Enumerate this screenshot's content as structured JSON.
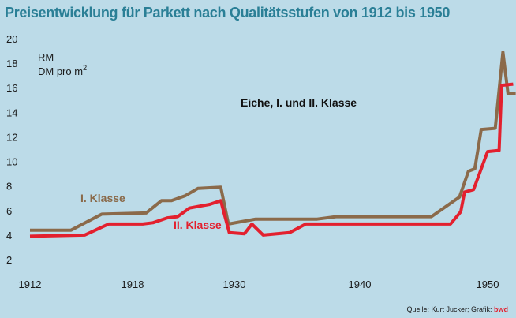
{
  "title": "Preisentwicklung für Parkett nach Qualitätsstufen von 1912 bis 1950",
  "source": "Quelle: Kurt Jucker; Grafik:",
  "source_brand": "bwd",
  "colors": {
    "background": "#bcdbe8",
    "title": "#2a7f96",
    "class1": "#8b6a4a",
    "class2": "#e3202e"
  },
  "chart_data": {
    "type": "line",
    "title": "Preisentwicklung für Parkett nach Qualitätsstufen von 1912 bis 1950",
    "unit_label": "RM",
    "unit_label2": "DM pro m",
    "unit_sup": "2",
    "annotation": "Eiche, I. und II. Klasse",
    "x_ticks": [
      1912,
      1918,
      1930,
      1940,
      1950
    ],
    "y_ticks": [
      2,
      4,
      6,
      8,
      10,
      12,
      14,
      16,
      18,
      20
    ],
    "ylim": [
      2,
      20
    ],
    "grid": false,
    "series": [
      {
        "name": "I. Klasse",
        "color": "#8b6a4a",
        "points": [
          [
            1912.0,
            4.4
          ],
          [
            1914.4,
            4.4
          ],
          [
            1916.2,
            5.7
          ],
          [
            1919.6,
            5.8
          ],
          [
            1921.4,
            6.8
          ],
          [
            1922.6,
            6.8
          ],
          [
            1924.2,
            7.2
          ],
          [
            1925.7,
            7.8
          ],
          [
            1928.4,
            7.9
          ],
          [
            1929.3,
            4.9
          ],
          [
            1931.7,
            5.3
          ],
          [
            1936.6,
            5.3
          ],
          [
            1938.1,
            5.5
          ],
          [
            1945.6,
            5.5
          ],
          [
            1947.8,
            7.1
          ],
          [
            1948.5,
            9.2
          ],
          [
            1949.0,
            9.4
          ],
          [
            1949.5,
            12.6
          ],
          [
            1950.6,
            12.7
          ],
          [
            1951.2,
            18.9
          ],
          [
            1951.6,
            15.5
          ],
          [
            1952.2,
            15.5
          ]
        ]
      },
      {
        "name": "II. Klasse",
        "color": "#e3202e",
        "points": [
          [
            1912.0,
            3.9
          ],
          [
            1915.2,
            4.0
          ],
          [
            1916.6,
            4.9
          ],
          [
            1919.2,
            4.9
          ],
          [
            1920.4,
            5.0
          ],
          [
            1922.1,
            5.4
          ],
          [
            1923.3,
            5.5
          ],
          [
            1924.7,
            6.2
          ],
          [
            1927.1,
            6.5
          ],
          [
            1928.4,
            6.8
          ],
          [
            1929.4,
            4.2
          ],
          [
            1930.8,
            4.1
          ],
          [
            1931.4,
            4.9
          ],
          [
            1932.3,
            4.0
          ],
          [
            1934.4,
            4.2
          ],
          [
            1935.7,
            4.9
          ],
          [
            1947.1,
            4.9
          ],
          [
            1947.9,
            5.9
          ],
          [
            1948.2,
            7.5
          ],
          [
            1948.9,
            7.7
          ],
          [
            1950.0,
            10.8
          ],
          [
            1950.9,
            10.9
          ],
          [
            1951.1,
            16.2
          ],
          [
            1952.0,
            16.3
          ]
        ]
      }
    ]
  }
}
